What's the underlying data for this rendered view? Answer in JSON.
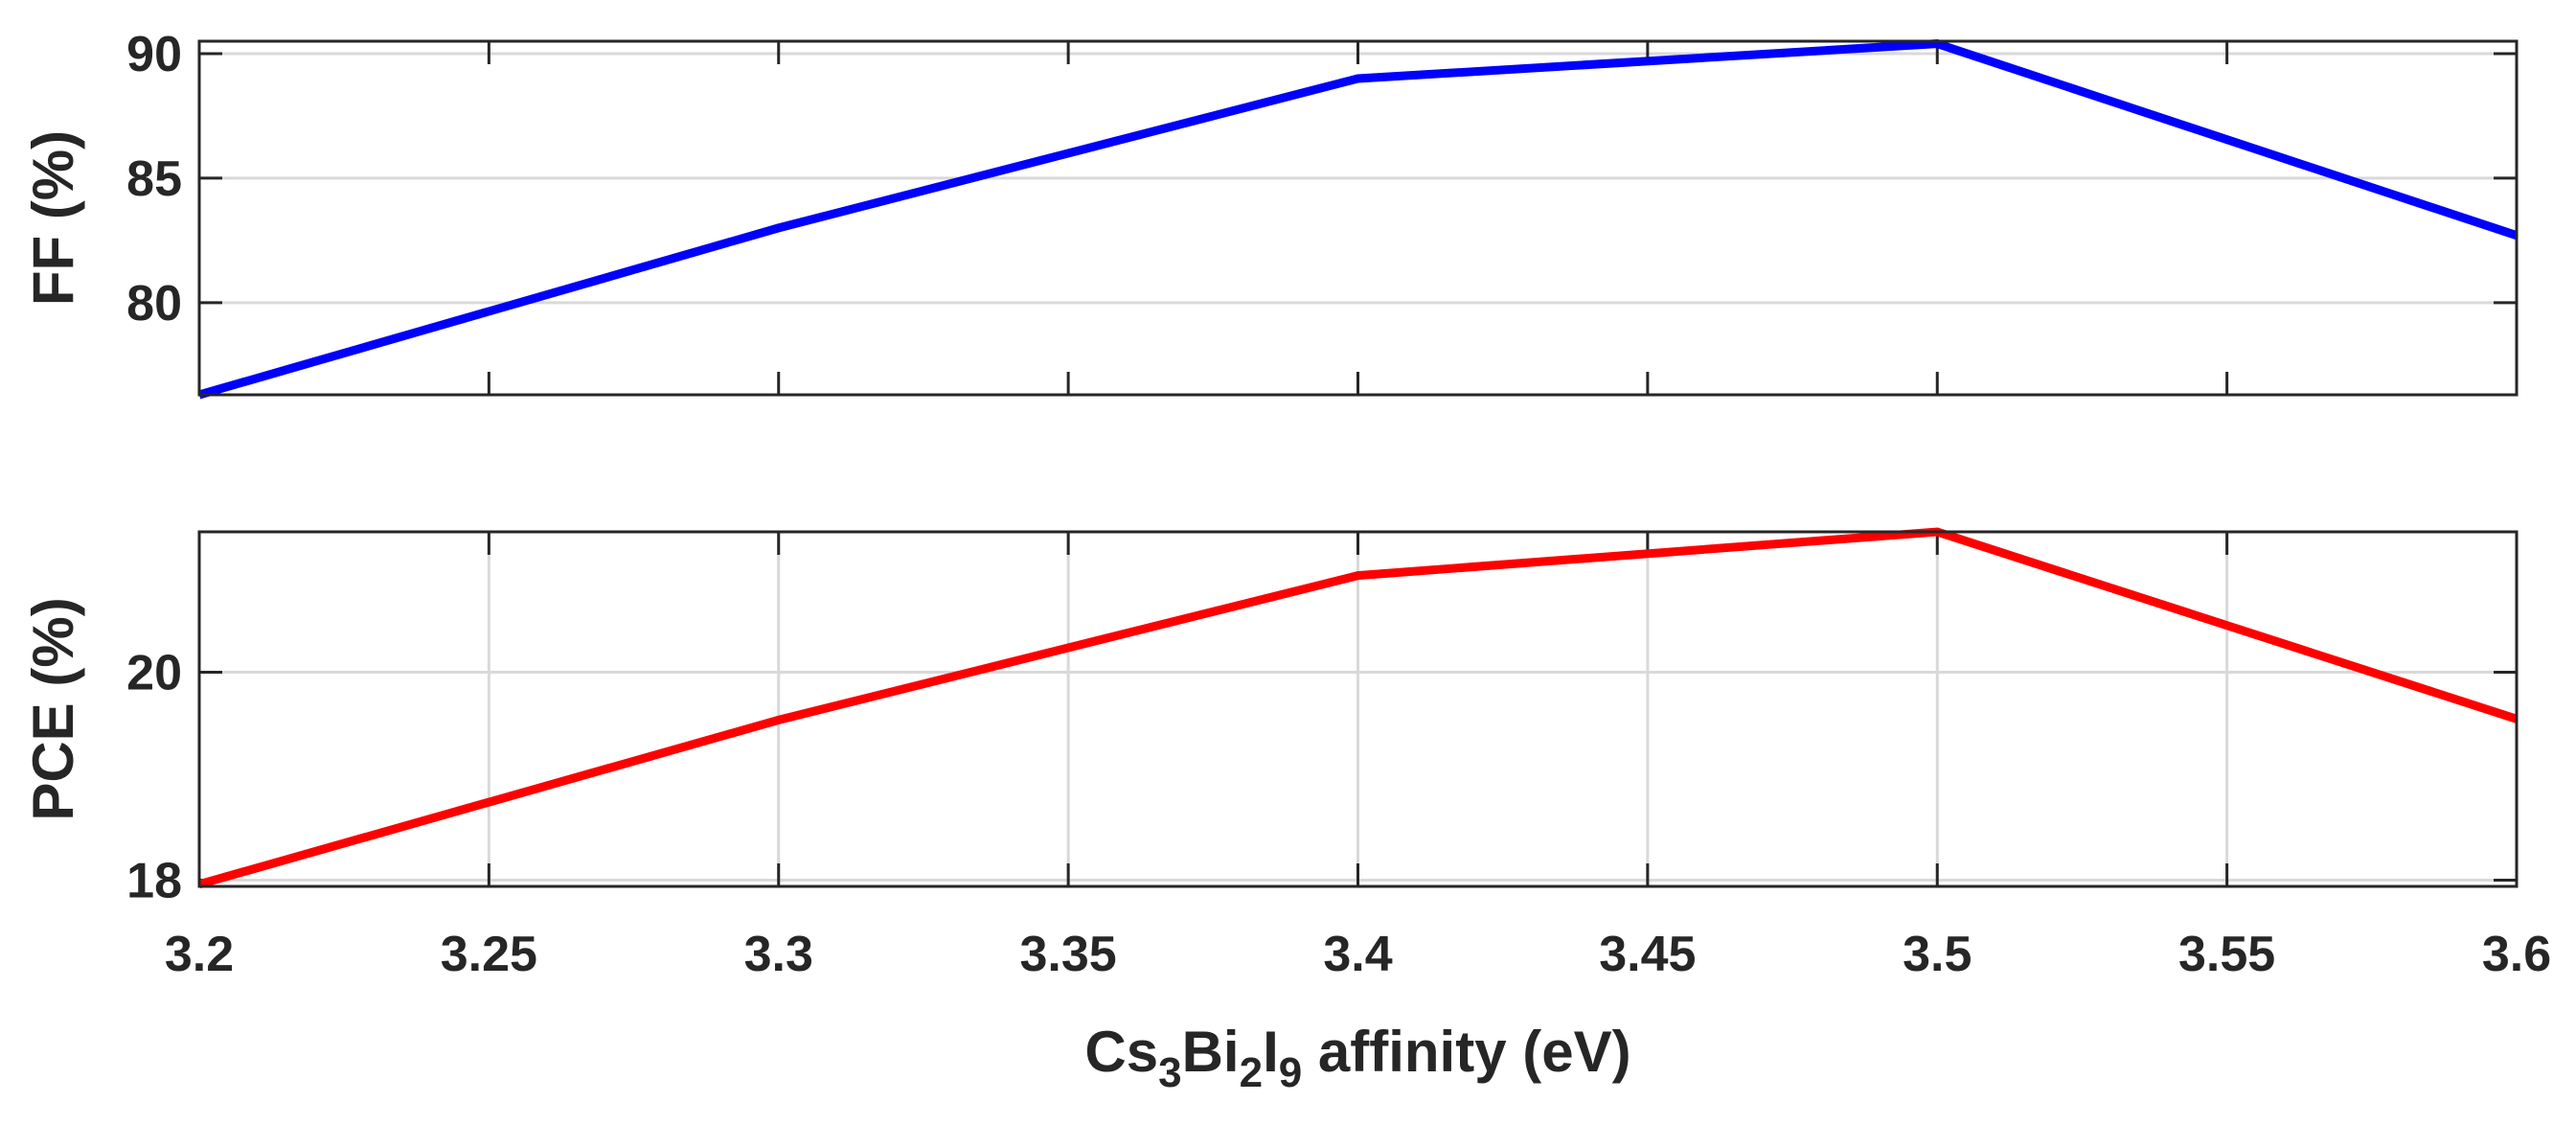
{
  "colors": {
    "ff_series": "#0000ff",
    "pce_series": "#ff0000",
    "text": "#262626",
    "grid": "#d9d9d9"
  },
  "chart_data": [
    {
      "type": "line",
      "panel": "top",
      "title": "",
      "xlabel": "",
      "ylabel": "FF (%)",
      "xlim": [
        3.2,
        3.6
      ],
      "ylim": [
        76.3,
        90.5
      ],
      "xgrid": false,
      "ygrid": true,
      "x": [
        3.2,
        3.3,
        3.4,
        3.5,
        3.6
      ],
      "series": [
        {
          "name": "FF",
          "values": [
            76.3,
            83.0,
            89.0,
            90.4,
            82.7
          ]
        }
      ],
      "yticks": [
        80,
        85,
        90
      ],
      "ytick_labels": [
        "80",
        "85",
        "90"
      ]
    },
    {
      "type": "line",
      "panel": "bottom",
      "title": "",
      "xlabel_parts": [
        "Cs",
        "3",
        "Bi",
        "2",
        "I",
        "9",
        " affinity (eV)"
      ],
      "ylabel": "PCE (%)",
      "xlim": [
        3.2,
        3.6
      ],
      "ylim": [
        17.94,
        21.35
      ],
      "xgrid": true,
      "ygrid": true,
      "x": [
        3.2,
        3.3,
        3.4,
        3.5,
        3.6
      ],
      "series": [
        {
          "name": "PCE",
          "values": [
            17.96,
            19.54,
            20.93,
            21.35,
            19.55
          ]
        }
      ],
      "yticks": [
        18,
        20
      ],
      "ytick_labels": [
        "18",
        "20"
      ],
      "xticks": [
        3.2,
        3.25,
        3.3,
        3.35,
        3.4,
        3.45,
        3.5,
        3.55,
        3.6
      ],
      "xtick_labels": [
        "3.2",
        "3.25",
        "3.3",
        "3.35",
        "3.4",
        "3.45",
        "3.5",
        "3.55",
        "3.6"
      ]
    }
  ]
}
